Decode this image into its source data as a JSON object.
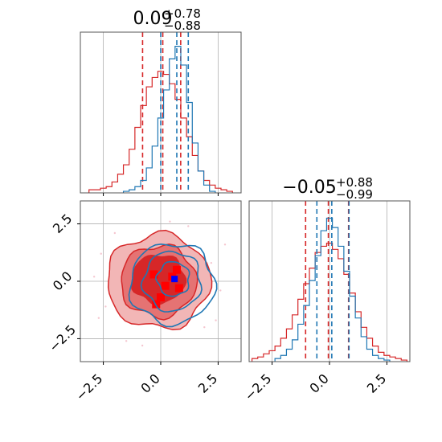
{
  "colors": {
    "red": "#d62728",
    "blue": "#1f77b4",
    "red_fill_dark": "#d62728",
    "red_fill_mid": "#e57373",
    "red_fill_light": "#f2b6b6",
    "grid": "#b0b0b0",
    "axis": "#000000"
  },
  "titles": {
    "param1": {
      "value": "0.09",
      "plus": "+0.78",
      "minus": "−0.88"
    },
    "param2": {
      "value": "−0.05",
      "plus": "+0.88",
      "minus": "−0.99"
    }
  },
  "chart_data": [
    {
      "panel": "marginal-param1",
      "type": "histogram-step",
      "xlim": [
        -3.5,
        3.5
      ],
      "grid": true,
      "series": [
        {
          "color": "#d62728",
          "x": [
            -3.0,
            -2.75,
            -2.5,
            -2.25,
            -2.0,
            -1.75,
            -1.5,
            -1.25,
            -1.0,
            -0.75,
            -0.5,
            -0.25,
            0.0,
            0.25,
            0.5,
            0.75,
            1.0,
            1.25,
            1.5,
            1.75,
            2.0,
            2.25,
            2.5,
            2.75,
            3.0
          ],
          "y": [
            0.02,
            0.02,
            0.03,
            0.04,
            0.07,
            0.12,
            0.18,
            0.28,
            0.42,
            0.56,
            0.68,
            0.74,
            0.78,
            0.76,
            0.7,
            0.6,
            0.48,
            0.36,
            0.24,
            0.14,
            0.08,
            0.05,
            0.03,
            0.02,
            0.01
          ],
          "quantiles": [
            -0.79,
            0.09,
            0.87
          ]
        },
        {
          "color": "#1f77b4",
          "x": [
            -1.5,
            -1.25,
            -1.0,
            -0.75,
            -0.5,
            -0.25,
            0.0,
            0.25,
            0.5,
            0.75,
            1.0,
            1.25,
            1.5,
            1.75,
            2.0,
            2.25
          ],
          "y": [
            0.01,
            0.02,
            0.04,
            0.08,
            0.16,
            0.3,
            0.48,
            0.66,
            0.86,
            0.94,
            0.82,
            0.58,
            0.32,
            0.14,
            0.05,
            0.01
          ],
          "quantiles": [
            0.0,
            0.7,
            1.2
          ]
        }
      ],
      "xticks": [
        -2.5,
        0.0,
        2.5
      ]
    },
    {
      "panel": "joint-param1-param2",
      "type": "contour",
      "xlim": [
        -3.5,
        3.5
      ],
      "ylim": [
        -3.5,
        3.5
      ],
      "grid": true,
      "xticks": [
        -2.5,
        0.0,
        2.5
      ],
      "yticks": [
        -2.5,
        0.0,
        2.5
      ],
      "xticklabels": [
        "−2.5",
        "0.0",
        "2.5"
      ],
      "yticklabels": [
        "−2.5",
        "0.0",
        "2.5"
      ],
      "red_levels": [
        {
          "cx": -0.1,
          "cy": 0.0,
          "rx": 2.25,
          "ry": 2.05,
          "shade": "light"
        },
        {
          "cx": -0.1,
          "cy": 0.0,
          "rx": 1.65,
          "ry": 1.55,
          "shade": "mid"
        },
        {
          "cx": -0.1,
          "cy": 0.1,
          "rx": 1.15,
          "ry": 1.05,
          "shade": "dark"
        }
      ],
      "blue_levels": [
        {
          "cx": 0.5,
          "cy": -0.1,
          "rx": 1.85,
          "ry": 1.75
        },
        {
          "cx": 0.5,
          "cy": 0.0,
          "rx": 1.25,
          "ry": 1.3
        },
        {
          "cx": 0.55,
          "cy": 0.1,
          "rx": 0.7,
          "ry": 0.75
        }
      ],
      "red_peak_cells": [
        [
          0.7,
          0.5
        ],
        [
          0.5,
          0.2
        ],
        [
          0.2,
          -0.2
        ],
        [
          0.0,
          -0.7
        ],
        [
          -0.2,
          -1.0
        ],
        [
          0.8,
          -0.3
        ],
        [
          -0.3,
          0.3
        ]
      ],
      "blue_peak": [
        0.6,
        0.1
      ]
    },
    {
      "panel": "marginal-param2",
      "type": "histogram-step",
      "xlim": [
        -3.5,
        3.5
      ],
      "grid": true,
      "xticks": [
        -2.5,
        0.0,
        2.5
      ],
      "xticklabels": [
        "−2.5",
        "0.0",
        "2.5"
      ],
      "series": [
        {
          "color": "#d62728",
          "x": [
            -3.25,
            -3.0,
            -2.75,
            -2.5,
            -2.25,
            -2.0,
            -1.75,
            -1.5,
            -1.25,
            -1.0,
            -0.75,
            -0.5,
            -0.25,
            0.0,
            0.25,
            0.5,
            0.75,
            1.0,
            1.25,
            1.5,
            1.75,
            2.0,
            2.25,
            2.5,
            2.75,
            3.0,
            3.25
          ],
          "y": [
            0.02,
            0.03,
            0.05,
            0.07,
            0.1,
            0.15,
            0.21,
            0.3,
            0.4,
            0.5,
            0.6,
            0.7,
            0.74,
            0.76,
            0.72,
            0.66,
            0.56,
            0.44,
            0.32,
            0.22,
            0.15,
            0.1,
            0.06,
            0.04,
            0.03,
            0.02,
            0.01
          ],
          "quantiles": [
            -1.04,
            -0.05,
            0.83
          ]
        },
        {
          "color": "#1f77b4",
          "x": [
            -2.25,
            -2.0,
            -1.75,
            -1.5,
            -1.25,
            -1.0,
            -0.75,
            -0.5,
            -0.25,
            0.0,
            0.25,
            0.5,
            0.75,
            1.0,
            1.25,
            1.5,
            1.75,
            2.0,
            2.25,
            2.5
          ],
          "y": [
            0.02,
            0.04,
            0.08,
            0.14,
            0.24,
            0.36,
            0.52,
            0.68,
            0.84,
            0.92,
            0.86,
            0.74,
            0.58,
            0.42,
            0.28,
            0.16,
            0.08,
            0.04,
            0.02,
            0.01
          ],
          "quantiles": [
            -0.55,
            0.1,
            0.85
          ]
        }
      ]
    }
  ]
}
